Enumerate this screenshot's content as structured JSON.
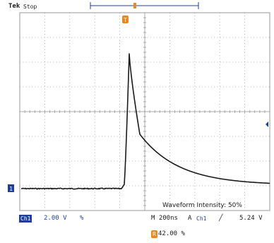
{
  "header": {
    "brand": "Tek",
    "acq_state": "Stop"
  },
  "markers": {
    "trigger_position": "T",
    "channel_1": "1",
    "reference": "R"
  },
  "overlay": {
    "intensity_text": "Waveform Intensity:  50%"
  },
  "status_bar": {
    "channel_label": "Ch1",
    "channel_scale": "2.00 V",
    "channel_coupling": "%",
    "timebase": "M 200ns",
    "trigger_prefix": "A",
    "trigger_source": "Ch1",
    "trigger_slope": "╱",
    "trigger_level": "5.24 V",
    "intensity_badge": "R",
    "intensity_value": "42.00 %"
  },
  "colors": {
    "trace": "#1a1a1a",
    "grid": "#9a9a9a",
    "channel_badge": "#1f3fa0",
    "trigger_marker": "#e8891d"
  }
}
